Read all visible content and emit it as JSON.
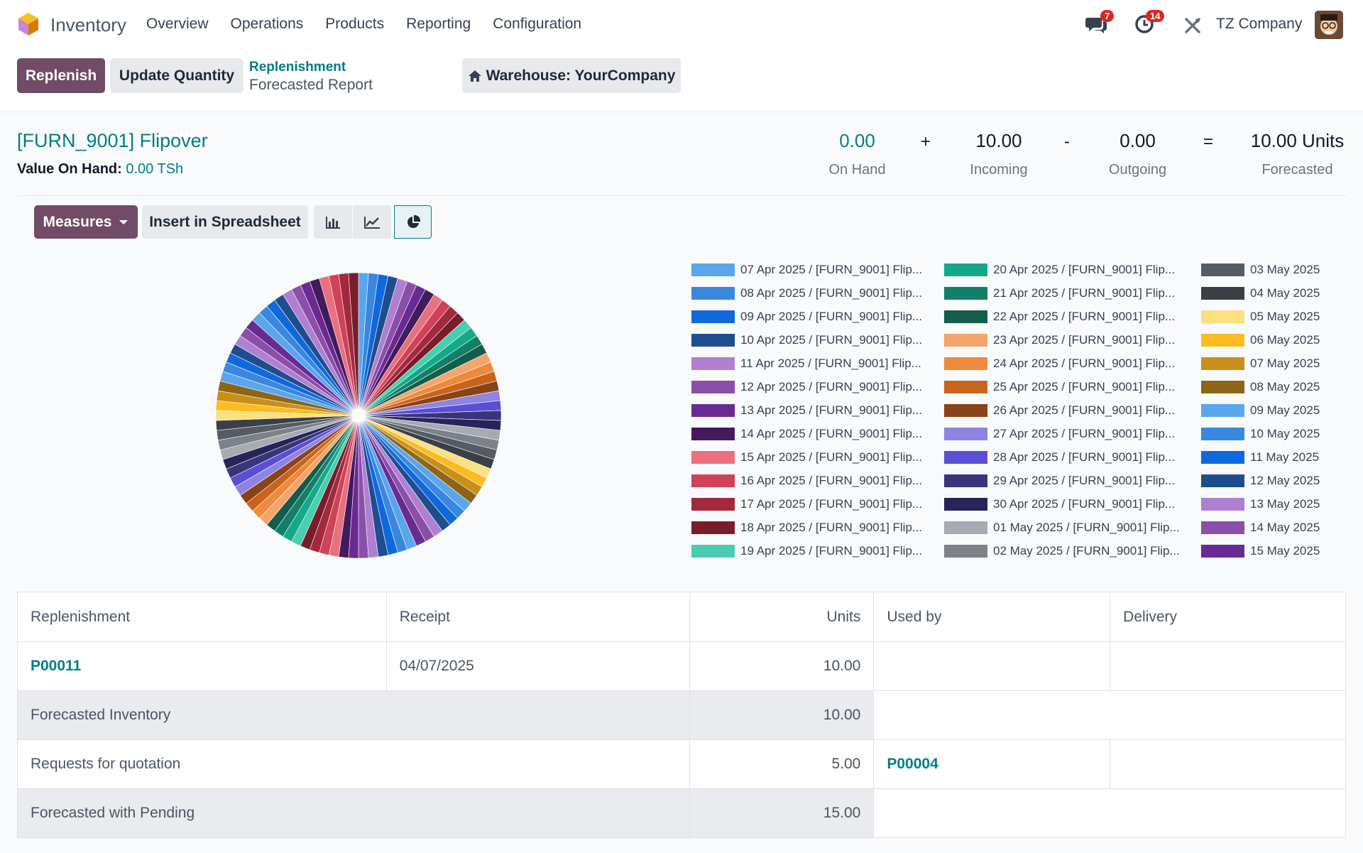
{
  "navbar": {
    "app_name": "Inventory",
    "menu": [
      "Overview",
      "Operations",
      "Products",
      "Reporting",
      "Configuration"
    ],
    "messages_badge": "7",
    "activities_badge": "14",
    "company": "TZ Company"
  },
  "control_panel": {
    "replenish_label": "Replenish",
    "update_qty_label": "Update Quantity",
    "breadcrumb_parent": "Replenishment",
    "breadcrumb_current": "Forecasted Report",
    "warehouse_label": "Warehouse: YourCompany"
  },
  "product": {
    "title": "[FURN_9001] Flipover",
    "value_label": "Value On Hand:",
    "value_amount": "0.00 TSh"
  },
  "stats": {
    "on_hand_value": "0.00",
    "on_hand_label": "On Hand",
    "plus": "+",
    "incoming_value": "10.00",
    "incoming_label": "Incoming",
    "minus": "-",
    "outgoing_value": "0.00",
    "outgoing_label": "Outgoing",
    "equals": "=",
    "forecasted_value": "10.00 Units",
    "forecasted_label": "Forecasted"
  },
  "graph_toolbar": {
    "measures_label": "Measures",
    "insert_label": "Insert in Spreadsheet",
    "active_view": "pie"
  },
  "chart_data": {
    "type": "pie",
    "legend": [
      {
        "label": "07 Apr 2025 / [FURN_9001] Flip...",
        "color": "#5aa6ec"
      },
      {
        "label": "08 Apr 2025 / [FURN_9001] Flip...",
        "color": "#3a87e0"
      },
      {
        "label": "09 Apr 2025 / [FURN_9001] Flip...",
        "color": "#1069dc"
      },
      {
        "label": "10 Apr 2025 / [FURN_9001] Flip...",
        "color": "#1f4e8f"
      },
      {
        "label": "11 Apr 2025 / [FURN_9001] Flip...",
        "color": "#b07fd1"
      },
      {
        "label": "12 Apr 2025 / [FURN_9001] Flip...",
        "color": "#8a4fa8"
      },
      {
        "label": "13 Apr 2025 / [FURN_9001] Flip...",
        "color": "#6a2a94"
      },
      {
        "label": "14 Apr 2025 / [FURN_9001] Flip...",
        "color": "#431b5d"
      },
      {
        "label": "15 Apr 2025 / [FURN_9001] Flip...",
        "color": "#e9707e"
      },
      {
        "label": "16 Apr 2025 / [FURN_9001] Flip...",
        "color": "#cf4258"
      },
      {
        "label": "17 Apr 2025 / [FURN_9001] Flip...",
        "color": "#a22a3c"
      },
      {
        "label": "18 Apr 2025 / [FURN_9001] Flip...",
        "color": "#7a1d2b"
      },
      {
        "label": "19 Apr 2025 / [FURN_9001] Flip...",
        "color": "#48cdb1"
      },
      {
        "label": "20 Apr 2025 / [FURN_9001] Flip...",
        "color": "#14a88a"
      },
      {
        "label": "21 Apr 2025 / [FURN_9001] Flip...",
        "color": "#128068"
      },
      {
        "label": "22 Apr 2025 / [FURN_9001] Flip...",
        "color": "#145c4c"
      },
      {
        "label": "23 Apr 2025 / [FURN_9001] Flip...",
        "color": "#f4a56b"
      },
      {
        "label": "24 Apr 2025 / [FURN_9001] Flip...",
        "color": "#ef8a3c"
      },
      {
        "label": "25 Apr 2025 / [FURN_9001] Flip...",
        "color": "#c8641c"
      },
      {
        "label": "26 Apr 2025 / [FURN_9001] Flip...",
        "color": "#8a4217"
      },
      {
        "label": "27 Apr 2025 / [FURN_9001] Flip...",
        "color": "#8f84e0"
      },
      {
        "label": "28 Apr 2025 / [FURN_9001] Flip...",
        "color": "#5b4fd6"
      },
      {
        "label": "29 Apr 2025 / [FURN_9001] Flip...",
        "color": "#3a347c"
      },
      {
        "label": "30 Apr 2025 / [FURN_9001] Flip...",
        "color": "#262458"
      },
      {
        "label": "01 May 2025 / [FURN_9001] Flip...",
        "color": "#a5aab3"
      },
      {
        "label": "02 May 2025 / [FURN_9001] Flip...",
        "color": "#7c818a"
      },
      {
        "label": "03 May 2025",
        "color": "#565c66"
      },
      {
        "label": "04 May 2025",
        "color": "#3c3f46"
      },
      {
        "label": "05 May 2025",
        "color": "#fde07f"
      },
      {
        "label": "06 May 2025",
        "color": "#fbbc22"
      },
      {
        "label": "07 May 2025",
        "color": "#c8901b"
      },
      {
        "label": "08 May 2025",
        "color": "#8e6517"
      },
      {
        "label": "09 May 2025",
        "color": "#5aa6ec"
      },
      {
        "label": "10 May 2025",
        "color": "#3a87e0"
      },
      {
        "label": "11 May 2025",
        "color": "#1069dc"
      },
      {
        "label": "12 May 2025",
        "color": "#1f4e8f"
      },
      {
        "label": "13 May 2025",
        "color": "#b07fd1"
      },
      {
        "label": "14 May 2025",
        "color": "#8a4fa8"
      },
      {
        "label": "15 May 2025",
        "color": "#6a2a94"
      }
    ]
  },
  "table": {
    "headers": [
      "Replenishment",
      "Receipt",
      "Units",
      "Used by",
      "Delivery"
    ],
    "rows": [
      {
        "replenishment": "P00011",
        "receipt": "04/07/2025",
        "units": "10.00",
        "used_by": "",
        "delivery": ""
      },
      {
        "label": "Forecasted Inventory",
        "units": "10.00"
      },
      {
        "label": "Requests for quotation",
        "units": "5.00",
        "used_by": "P00004",
        "delivery": ""
      },
      {
        "label": "Forecasted with Pending",
        "units": "15.00"
      }
    ]
  }
}
